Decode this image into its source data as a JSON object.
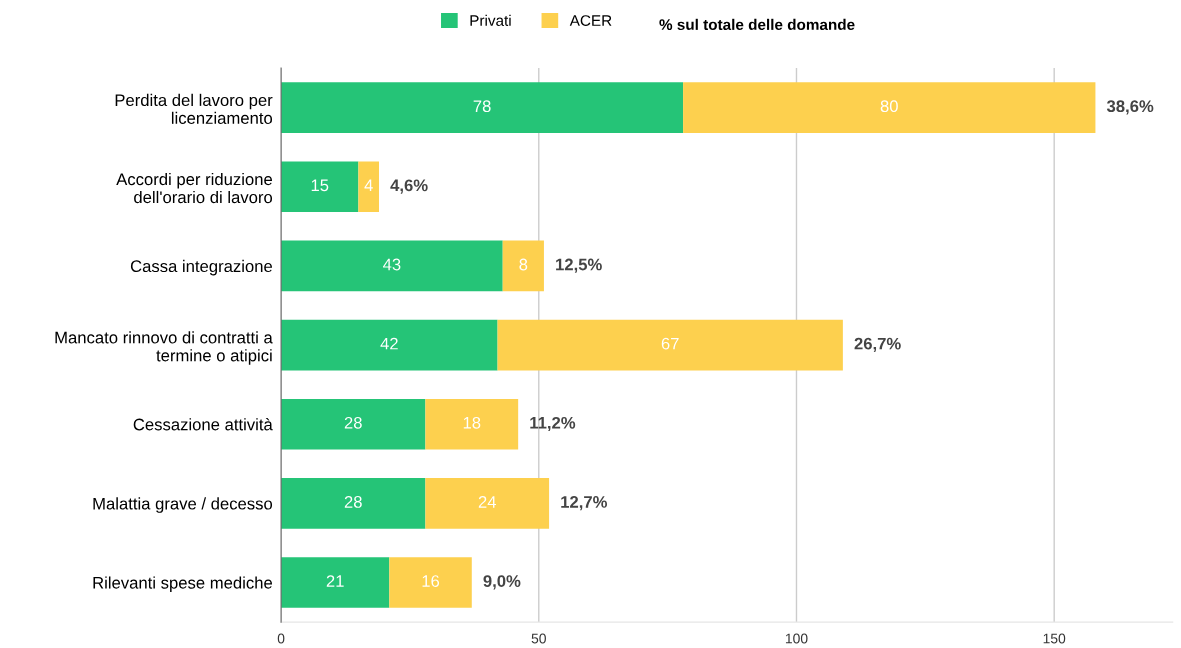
{
  "chart_data": {
    "type": "bar",
    "orientation": "horizontal",
    "stacked": true,
    "categories": [
      "Perdita del lavoro per\nlicenziamento",
      "Accordi per riduzione\ndell'orario di lavoro",
      "Cassa integrazione",
      "Mancato rinnovo di contratti a\ntermine o atipici",
      "Cessazione attività",
      "Malattia grave / decesso",
      "Rilevanti spese mediche"
    ],
    "series": [
      {
        "name": "Privati",
        "color": "#25c477",
        "values": [
          78,
          15,
          43,
          42,
          28,
          28,
          21
        ]
      },
      {
        "name": "ACER",
        "color": "#fdd04e",
        "values": [
          80,
          4,
          8,
          67,
          18,
          24,
          16
        ]
      }
    ],
    "annotations": [
      "% sul totale delle domande",
      {
        "text": "38,6%",
        "x": 158,
        "y": "Perdita del lavoro per\nlicenziamento"
      },
      {
        "text": "4,6%",
        "x": 19,
        "y": "Accordi per riduzione\ndell'orario di lavoro"
      },
      {
        "text": "12,5%",
        "x": 51,
        "y": "Cassa integrazione"
      },
      {
        "text": "26,7%",
        "x": 109,
        "y": "Mancato rinnovo di contratti a\ntermine o atipici"
      },
      {
        "text": "11,2%",
        "x": 46,
        "y": "Cessazione attività"
      },
      {
        "text": "12,7%",
        "x": 52,
        "y": "Malattia grave / decesso"
      },
      {
        "text": "9,0%",
        "x": 37,
        "y": "Rilevanti spese mediche"
      }
    ],
    "data_labels": true,
    "xlim": [
      0,
      173
    ],
    "xticks": [
      0,
      50,
      100,
      150
    ],
    "grid": "x",
    "legend": "top"
  }
}
